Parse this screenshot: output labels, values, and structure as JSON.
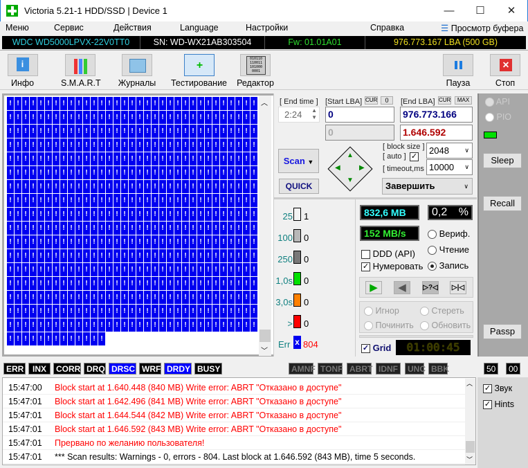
{
  "window": {
    "title": "Victoria 5.21-1 HDD/SSD | Device 1",
    "minimize": "—",
    "maximize": "☐",
    "close": "✕"
  },
  "menu": {
    "items": [
      "Меню",
      "Сервис",
      "Действия",
      "Language",
      "Настройки",
      "Справка"
    ],
    "buffer": "Просмотр буфера"
  },
  "device": {
    "model": "WDC WD5000LPVX-22V0TT0",
    "serial": "SN: WD-WX21AB303504",
    "firmware": "Fw: 01.01A01",
    "capacity": "976.773.167 LBA (500 GB)"
  },
  "toolbar": {
    "info": "Инфо",
    "smart": "S.M.A.R.T",
    "logs": "Журналы",
    "test": "Тестирование",
    "editor": "Редактор",
    "pause": "Пауза",
    "stop": "Стоп",
    "editor_icon_text": "010110\n110011\n101000\n0001"
  },
  "grid": {
    "cell_glyph": "!"
  },
  "controls": {
    "end_time_label": "[ End time ]",
    "end_time": "2:24",
    "start_lba_label": "[Start LBA]",
    "cur": "CUR",
    "zero": "0",
    "start_lba": "0",
    "start_lba_current": "0",
    "end_lba_label": "[End LBA]",
    "max": "MAX",
    "end_lba": "976.773.166",
    "end_lba_current": "1.646.592",
    "block_size_label": "[ block size ]",
    "auto_label": "[ auto ]",
    "auto_checked": true,
    "block_size": "2048",
    "timeout_label": "[ timeout,ms ]",
    "timeout": "10000",
    "scan": "Scan",
    "quick": "QUICK",
    "finish_action": "Завершить",
    "legend": [
      {
        "label": "25",
        "count": "1",
        "color": "#f4f4f4"
      },
      {
        "label": "100",
        "count": "0",
        "color": "#b8b8b8"
      },
      {
        "label": "250",
        "count": "0",
        "color": "#787878"
      },
      {
        "label": "1,0s",
        "count": "0",
        "color": "#00e000"
      },
      {
        "label": "3,0s",
        "count": "0",
        "color": "#ff8000"
      },
      {
        "label": ">",
        "count": "0",
        "color": "#ff0000"
      }
    ],
    "err_label": "Err",
    "err_count": "804",
    "processed": "832,6 MB",
    "percent": "0,2",
    "percent_sign": "%",
    "speed": "152 MB/s",
    "modes": [
      {
        "label": "Вериф.",
        "selected": false
      },
      {
        "label": "Чтение",
        "selected": false
      },
      {
        "label": "Запись",
        "selected": true
      }
    ],
    "ddd": "DDD (API)",
    "ddd_checked": false,
    "numerate": "Нумеровать",
    "numerate_checked": true,
    "actions": [
      {
        "label": "Игнор",
        "selected": true
      },
      {
        "label": "Стереть",
        "selected": false
      },
      {
        "label": "Починить",
        "selected": false
      },
      {
        "label": "Обновить",
        "selected": false
      }
    ],
    "grid_label": "Grid",
    "grid_checked": true,
    "timer": "01:00:45"
  },
  "right_panel": {
    "api": "API",
    "pio": "PIO",
    "sleep": "Sleep",
    "recall": "Recall",
    "passp": "Passp",
    "indicator_color": "#00e000"
  },
  "flags": {
    "active": [
      {
        "label": "ERR",
        "color": "#000"
      },
      {
        "label": "INX",
        "color": "#000"
      },
      {
        "label": "CORR",
        "color": "#000"
      },
      {
        "label": "DRQ",
        "color": "#000"
      },
      {
        "label": "DRSC",
        "color": "#0000ff"
      },
      {
        "label": "WRF",
        "color": "#000"
      },
      {
        "label": "DRDY",
        "color": "#0000ff"
      },
      {
        "label": "BUSY",
        "color": "#000"
      }
    ],
    "inactive": [
      "AMNF",
      "TONF",
      "ABRT",
      "IDNF",
      "UNC",
      "BBK"
    ],
    "counter1": "50",
    "counter2": "00"
  },
  "log": [
    {
      "time": "15:47:00",
      "msg": "Block start at 1.640.448 (840 MB) Write error: ABRT \"Отказано в доступе\"",
      "color": "#ff0000"
    },
    {
      "time": "15:47:01",
      "msg": "Block start at 1.642.496 (841 MB) Write error: ABRT \"Отказано в доступе\"",
      "color": "#ff0000"
    },
    {
      "time": "15:47:01",
      "msg": "Block start at 1.644.544 (842 MB) Write error: ABRT \"Отказано в доступе\"",
      "color": "#ff0000"
    },
    {
      "time": "15:47:01",
      "msg": "Block start at 1.646.592 (843 MB) Write error: ABRT \"Отказано в доступе\"",
      "color": "#ff0000"
    },
    {
      "time": "15:47:01",
      "msg": "Прервано по желанию пользователя!",
      "color": "#ff0000"
    },
    {
      "time": "15:47:01",
      "msg": "*** Scan results: Warnings - 0, errors - 804. Last block at 1.646.592 (843 MB), time 5 seconds.",
      "color": "#000000"
    }
  ],
  "log_options": {
    "sound": "Звук",
    "sound_checked": true,
    "hints": "Hints",
    "hints_checked": true
  }
}
